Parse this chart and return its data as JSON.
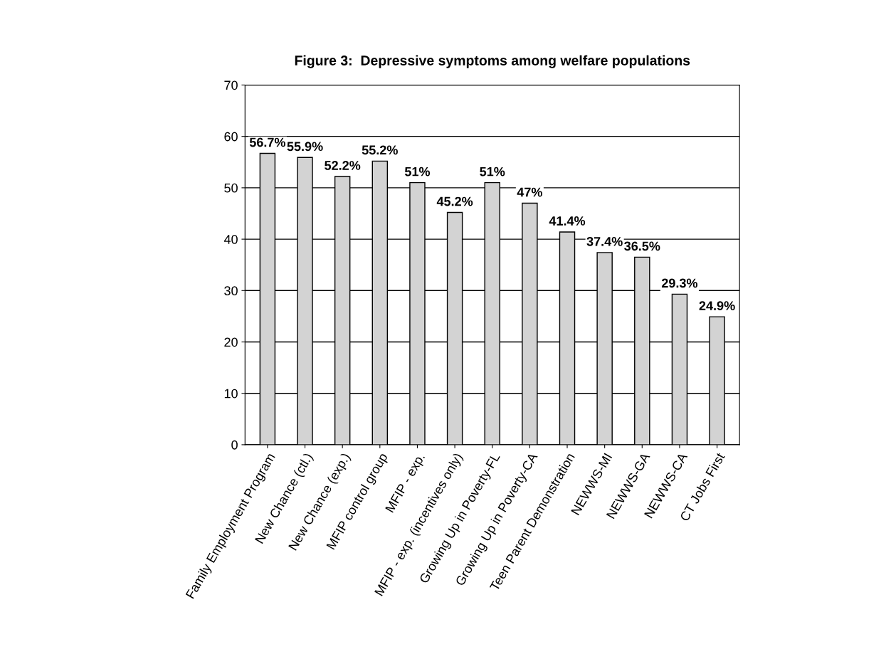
{
  "chart_data": {
    "type": "bar",
    "title": "Figure 3:  Depressive symptoms among welfare populations",
    "categories": [
      "Family Employment Program",
      "New Chance (ctl.)",
      "New Chance (exp.)",
      "MFIP control group",
      "MFIP - exp.",
      "MFIP - exp. (incentives only)",
      "Growing Up in Poverty-FL",
      "Growing Up in Poverty-CA",
      "Teen Parent Demonstration",
      "NEWWS-MI",
      "NEWWS-GA",
      "NEWWS-CA",
      "CT Jobs First"
    ],
    "values": [
      56.7,
      55.9,
      52.2,
      55.2,
      51,
      45.2,
      51,
      47,
      41.4,
      37.4,
      36.5,
      29.3,
      24.9
    ],
    "value_labels": [
      "56.7%",
      "55.9%",
      "52.2%",
      "55.2%",
      "51%",
      "45.2%",
      "51%",
      "47%",
      "41.4%",
      "37.4%",
      "36.5%",
      "29.3%",
      "24.9%"
    ],
    "color": "#d3d3d3",
    "ylim": [
      0,
      70
    ],
    "yticks": [
      0,
      10,
      20,
      30,
      40,
      50,
      60,
      70
    ],
    "grid": "y"
  }
}
